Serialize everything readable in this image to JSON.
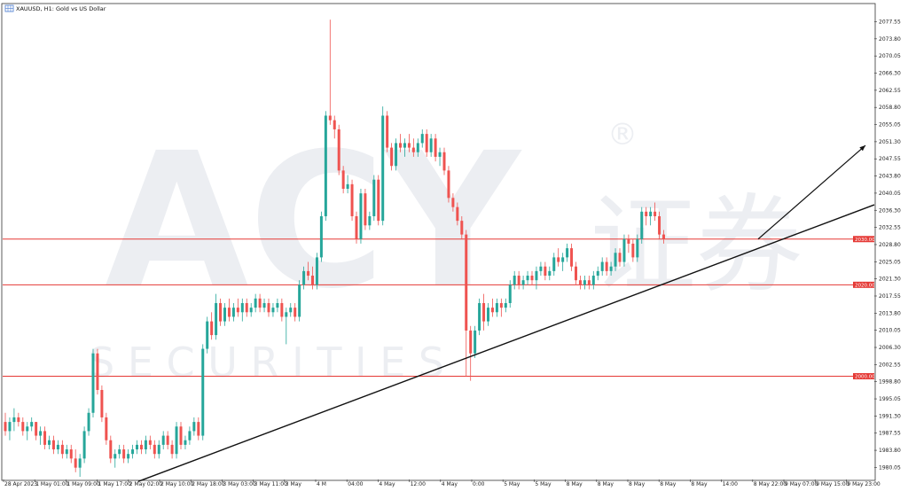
{
  "header": {
    "symbol_title": "XAUUSD, H1:  Gold vs US Dollar"
  },
  "watermark": {
    "brand": "ACY",
    "cn": "证券",
    "sub": "S E C U R I T I E S",
    "registered": "®"
  },
  "colors": {
    "bull": "#26a69a",
    "bear": "#ef5350",
    "level": "#e53935",
    "trend": "#111111",
    "axis": "#333333"
  },
  "chart_data": {
    "type": "candlestick",
    "symbol": "XAUUSD",
    "timeframe": "H1",
    "ylim": [
      1978.0,
      2080.0
    ],
    "y_ticks": [
      "1980.05",
      "1983.80",
      "1987.55",
      "1991.30",
      "1995.05",
      "1998.80",
      "2002.55",
      "2006.30",
      "2010.05",
      "2013.80",
      "2017.55",
      "2021.30",
      "2025.05",
      "2028.80",
      "2032.55",
      "2036.30",
      "2040.05",
      "2043.80",
      "2047.55",
      "2051.30",
      "2055.05",
      "2058.80",
      "2062.55",
      "2066.30",
      "2070.05",
      "2073.80",
      "2077.55"
    ],
    "x_ticks": [
      "28 Apr 2023",
      "1 May 01:00",
      "1 May 09:00",
      "1 May 17:00",
      "2 May 02:00",
      "2 May 10:00",
      "2 May 18:00",
      "3 May 03:00",
      "3 May 11:00",
      "3 May",
      "4 M",
      "04:00",
      "4 May",
      "12:00",
      "4 May",
      "0:00",
      "5 May",
      "5 May",
      "8 May",
      "8 May",
      "8 May",
      "8 May",
      "8 May",
      "14:00",
      "8 May 22:00",
      "9 May 07:00",
      "9 May 15:00",
      "9 May 23:00"
    ],
    "levels": [
      {
        "value": 2030.0,
        "label": "2030.00"
      },
      {
        "value": 2020.0,
        "label": "2020.00"
      },
      {
        "value": 2000.0,
        "label": "2000.00"
      }
    ],
    "trendline": {
      "from": {
        "bar": 0,
        "price": 1977.0
      },
      "to": {
        "bar": 172,
        "price": 2037.5
      }
    },
    "projection_arrow": {
      "from": {
        "bar": 147,
        "price": 2030.0
      },
      "to": {
        "bar": 168,
        "price": 2050.5
      }
    },
    "candles": [
      [
        1990,
        1992,
        1987,
        1988
      ],
      [
        1988,
        1991,
        1986,
        1990
      ],
      [
        1990,
        1993,
        1988,
        1991
      ],
      [
        1991,
        1992,
        1989,
        1990
      ],
      [
        1990,
        1991,
        1987,
        1988
      ],
      [
        1988,
        1990,
        1986,
        1989
      ],
      [
        1989,
        1991,
        1988,
        1990
      ],
      [
        1990,
        1990,
        1986,
        1987
      ],
      [
        1987,
        1989,
        1985,
        1988
      ],
      [
        1988,
        1989,
        1984,
        1985
      ],
      [
        1985,
        1987,
        1984,
        1986
      ],
      [
        1986,
        1987,
        1983,
        1984
      ],
      [
        1984,
        1986,
        1983,
        1985
      ],
      [
        1985,
        1986,
        1982,
        1983
      ],
      [
        1983,
        1985,
        1982,
        1984
      ],
      [
        1984,
        1985,
        1981,
        1982
      ],
      [
        1982,
        1984,
        1979,
        1980
      ],
      [
        1980,
        1983,
        1978,
        1982
      ],
      [
        1982,
        1989,
        1981,
        1988
      ],
      [
        1988,
        1993,
        1987,
        1992
      ],
      [
        1992,
        2006,
        1991,
        2005
      ],
      [
        2005,
        2006,
        1996,
        1997
      ],
      [
        1997,
        1998,
        1990,
        1991
      ],
      [
        1991,
        1992,
        1985,
        1986
      ],
      [
        1986,
        1987,
        1981,
        1982
      ],
      [
        1982,
        1984,
        1980,
        1983
      ],
      [
        1983,
        1985,
        1982,
        1984
      ],
      [
        1984,
        1985,
        1981,
        1982
      ],
      [
        1982,
        1984,
        1981,
        1983
      ],
      [
        1983,
        1985,
        1982,
        1984
      ],
      [
        1984,
        1986,
        1983,
        1985
      ],
      [
        1985,
        1986,
        1983,
        1984
      ],
      [
        1984,
        1987,
        1983,
        1986
      ],
      [
        1986,
        1987,
        1984,
        1985
      ],
      [
        1985,
        1986,
        1982,
        1983
      ],
      [
        1983,
        1986,
        1982,
        1985
      ],
      [
        1985,
        1988,
        1984,
        1987
      ],
      [
        1987,
        1988,
        1984,
        1985
      ],
      [
        1985,
        1986,
        1982,
        1983
      ],
      [
        1983,
        1990,
        1982,
        1989
      ],
      [
        1989,
        1990,
        1984,
        1985
      ],
      [
        1985,
        1987,
        1984,
        1986
      ],
      [
        1986,
        1989,
        1985,
        1988
      ],
      [
        1988,
        1991,
        1987,
        1990
      ],
      [
        1990,
        1991,
        1986,
        1987
      ],
      [
        1987,
        2007,
        1986,
        2006
      ],
      [
        2006,
        2013,
        2005,
        2012
      ],
      [
        2012,
        2014,
        2008,
        2009
      ],
      [
        2009,
        2018,
        2008,
        2016
      ],
      [
        2016,
        2017,
        2011,
        2012
      ],
      [
        2012,
        2016,
        2011,
        2015
      ],
      [
        2015,
        2017,
        2012,
        2013
      ],
      [
        2013,
        2016,
        2012,
        2015
      ],
      [
        2015,
        2017,
        2013,
        2014
      ],
      [
        2014,
        2017,
        2012,
        2016
      ],
      [
        2016,
        2017,
        2013,
        2014
      ],
      [
        2014,
        2016,
        2013,
        2015
      ],
      [
        2015,
        2018,
        2014,
        2017
      ],
      [
        2017,
        2018,
        2014,
        2015
      ],
      [
        2015,
        2017,
        2014,
        2016
      ],
      [
        2016,
        2017,
        2013,
        2014
      ],
      [
        2014,
        2016,
        2013,
        2015
      ],
      [
        2015,
        2017,
        2014,
        2016
      ],
      [
        2016,
        2017,
        2012,
        2013
      ],
      [
        2013,
        2015,
        2007,
        2014
      ],
      [
        2014,
        2016,
        2013,
        2015
      ],
      [
        2015,
        2016,
        2012,
        2013
      ],
      [
        2013,
        2021,
        2012,
        2020
      ],
      [
        2020,
        2024,
        2019,
        2023
      ],
      [
        2023,
        2025,
        2021,
        2022
      ],
      [
        2022,
        2024,
        2019,
        2020
      ],
      [
        2020,
        2027,
        2019,
        2026
      ],
      [
        2026,
        2036,
        2025,
        2035
      ],
      [
        2035,
        2058,
        2034,
        2057
      ],
      [
        2057,
        2078,
        2055,
        2056
      ],
      [
        2056,
        2057,
        2052,
        2054
      ],
      [
        2054,
        2055,
        2044,
        2045
      ],
      [
        2045,
        2046,
        2040,
        2041
      ],
      [
        2041,
        2044,
        2040,
        2042
      ],
      [
        2042,
        2043,
        2034,
        2035
      ],
      [
        2035,
        2036,
        2029,
        2030
      ],
      [
        2030,
        2041,
        2029,
        2040
      ],
      [
        2040,
        2041,
        2032,
        2033
      ],
      [
        2033,
        2036,
        2032,
        2035
      ],
      [
        2035,
        2044,
        2034,
        2043
      ],
      [
        2043,
        2044,
        2033,
        2034
      ],
      [
        2034,
        2059,
        2033,
        2057
      ],
      [
        2057,
        2058,
        2049,
        2050
      ],
      [
        2050,
        2051,
        2045,
        2046
      ],
      [
        2046,
        2052,
        2045,
        2051
      ],
      [
        2051,
        2053,
        2049,
        2050
      ],
      [
        2050,
        2052,
        2048,
        2051
      ],
      [
        2051,
        2053,
        2049,
        2050
      ],
      [
        2050,
        2052,
        2048,
        2049
      ],
      [
        2049,
        2052,
        2048,
        2051
      ],
      [
        2051,
        2054,
        2050,
        2053
      ],
      [
        2053,
        2054,
        2048,
        2049
      ],
      [
        2049,
        2053,
        2048,
        2052
      ],
      [
        2052,
        2053,
        2047,
        2048
      ],
      [
        2048,
        2050,
        2046,
        2049
      ],
      [
        2049,
        2050,
        2044,
        2045
      ],
      [
        2045,
        2046,
        2038,
        2039
      ],
      [
        2039,
        2040,
        2036,
        2037
      ],
      [
        2037,
        2038,
        2033,
        2034
      ],
      [
        2034,
        2035,
        2030,
        2031
      ],
      [
        2031,
        2032,
        2000,
        2010
      ],
      [
        2010,
        2011,
        1999,
        2005
      ],
      [
        2005,
        2011,
        2004,
        2010
      ],
      [
        2010,
        2017,
        2009,
        2016
      ],
      [
        2016,
        2018,
        2010,
        2012
      ],
      [
        2012,
        2016,
        2011,
        2015
      ],
      [
        2015,
        2017,
        2013,
        2014
      ],
      [
        2014,
        2017,
        2013,
        2016
      ],
      [
        2016,
        2017,
        2013,
        2015
      ],
      [
        2015,
        2017,
        2014,
        2016
      ],
      [
        2016,
        2021,
        2015,
        2020
      ],
      [
        2020,
        2023,
        2019,
        2022
      ],
      [
        2022,
        2023,
        2019,
        2020
      ],
      [
        2020,
        2022,
        2019,
        2021
      ],
      [
        2021,
        2023,
        2020,
        2022
      ],
      [
        2022,
        2023,
        2020,
        2021
      ],
      [
        2021,
        2024,
        2019,
        2023
      ],
      [
        2023,
        2025,
        2022,
        2024
      ],
      [
        2024,
        2025,
        2021,
        2022
      ],
      [
        2022,
        2024,
        2021,
        2023
      ],
      [
        2023,
        2027,
        2022,
        2026
      ],
      [
        2026,
        2028,
        2024,
        2025
      ],
      [
        2025,
        2027,
        2023,
        2026
      ],
      [
        2026,
        2029,
        2025,
        2028
      ],
      [
        2028,
        2029,
        2023,
        2024
      ],
      [
        2024,
        2025,
        2020,
        2021
      ],
      [
        2021,
        2022,
        2019,
        2020
      ],
      [
        2020,
        2022,
        2019,
        2021
      ],
      [
        2021,
        2022,
        2019,
        2020
      ],
      [
        2020,
        2023,
        2019,
        2022
      ],
      [
        2022,
        2024,
        2021,
        2023
      ],
      [
        2023,
        2026,
        2022,
        2025
      ],
      [
        2025,
        2026,
        2022,
        2023
      ],
      [
        2023,
        2025,
        2022,
        2024
      ],
      [
        2024,
        2028,
        2023,
        2027
      ],
      [
        2027,
        2028,
        2024,
        2025
      ],
      [
        2025,
        2031,
        2024,
        2030
      ],
      [
        2030,
        2031,
        2027,
        2029
      ],
      [
        2029,
        2030,
        2025,
        2026
      ],
      [
        2026,
        2031,
        2025,
        2030
      ],
      [
        2030,
        2037,
        2029,
        2036
      ],
      [
        2036,
        2037,
        2033,
        2035
      ],
      [
        2035,
        2037,
        2033,
        2036
      ],
      [
        2036,
        2038,
        2034,
        2035
      ],
      [
        2035,
        2036,
        2030,
        2031
      ],
      [
        2031,
        2032,
        2029,
        2030
      ]
    ]
  }
}
